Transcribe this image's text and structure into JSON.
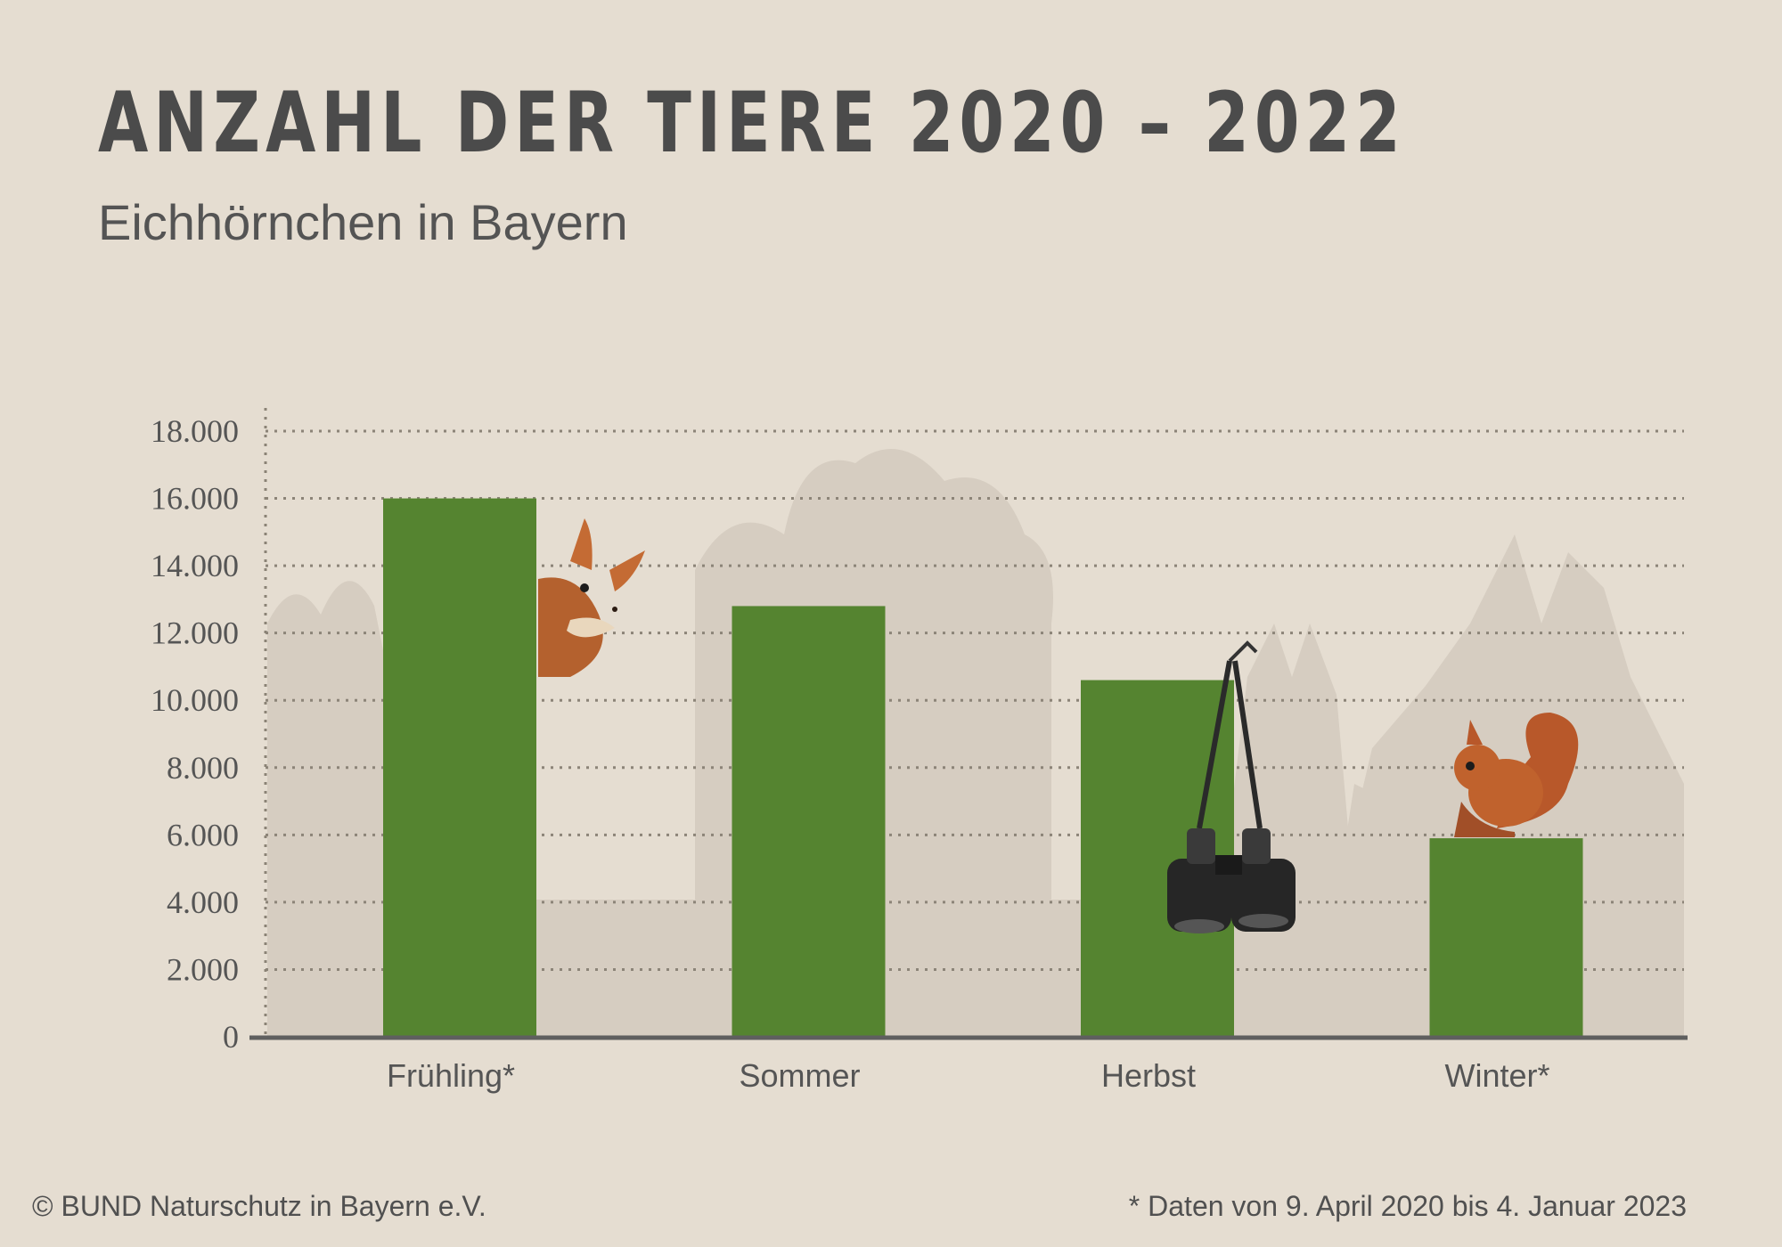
{
  "chart_data": {
    "type": "bar",
    "title": "ANZAHL DER TIERE 2020 – 2022",
    "subtitle": "Eichhörnchen in Bayern",
    "categories": [
      "Frühling*",
      "Sommer",
      "Herbst",
      "Winter*"
    ],
    "values": [
      16000,
      12800,
      10600,
      5900
    ],
    "ylim": [
      0,
      18000
    ],
    "yticks": [
      0,
      2000,
      4000,
      6000,
      8000,
      10000,
      12000,
      14000,
      16000,
      18000
    ],
    "ytick_labels": [
      "0",
      "2.000",
      "4.000",
      "6.000",
      "8.000",
      "10.000",
      "12.000",
      "14.000",
      "16.000",
      "18.000"
    ],
    "xlabel": "",
    "ylabel": "",
    "grid": true,
    "bar_color": "#558430",
    "axis_color": "#5f5f5f"
  },
  "footer": {
    "copyright": "© BUND Naturschutz in Bayern e.V.",
    "note": "* Daten von 9. April 2020 bis 4. Januar 2023"
  },
  "decorations": {
    "left_bar_image": "peeking-squirrel",
    "third_bar_image": "hanging-binoculars",
    "fourth_bar_image": "sitting-squirrel",
    "background": "forest-silhouette"
  }
}
